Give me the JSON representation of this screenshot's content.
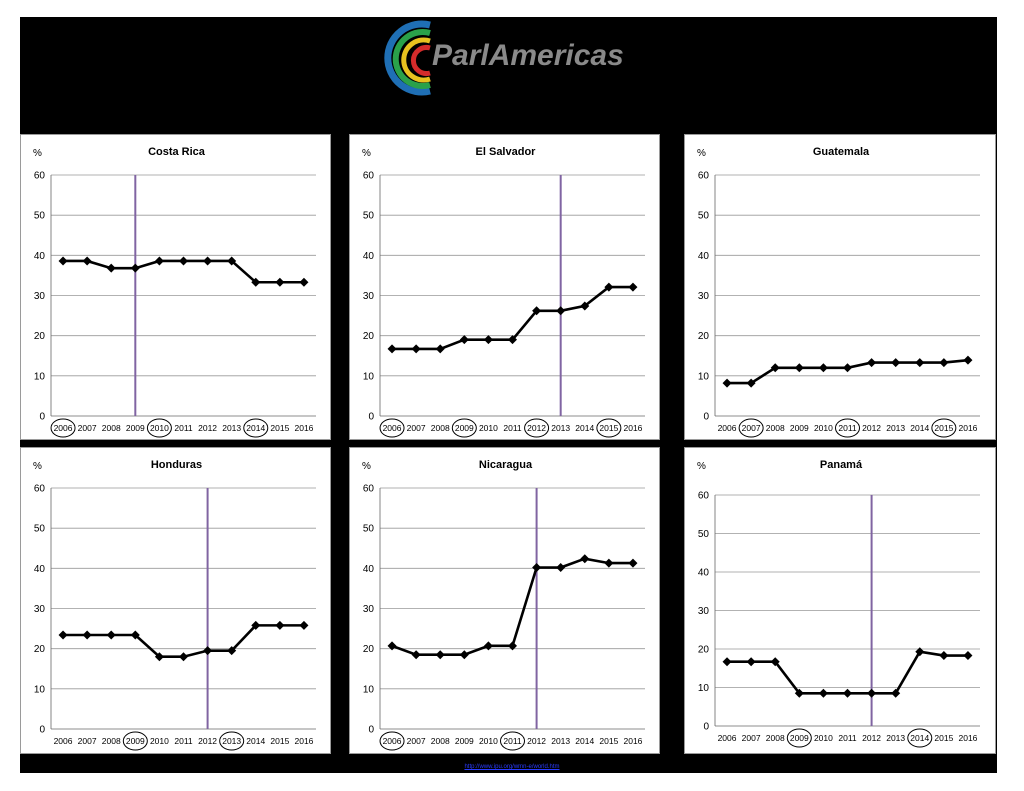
{
  "header": {
    "logo_text": "ParlAmericas"
  },
  "footer": {
    "link_text": "http://www.ipu.org/wmn-e/world.htm"
  },
  "colors": {
    "line": "#000000",
    "marker_line": "#8064a2",
    "grid": "#999999",
    "background": "#000000"
  },
  "chart_data": [
    {
      "type": "line",
      "title": "Costa Rica",
      "ylabel": "%",
      "ylim": [
        0,
        60
      ],
      "yticks": [
        0,
        10,
        20,
        30,
        40,
        50,
        60
      ],
      "categories": [
        "2006",
        "2007",
        "2008",
        "2009",
        "2010",
        "2011",
        "2012",
        "2013",
        "2014",
        "2015",
        "2016"
      ],
      "values": [
        38.6,
        38.6,
        36.8,
        36.8,
        38.6,
        38.6,
        38.6,
        38.6,
        33.3,
        33.3,
        33.3
      ],
      "highlight_years": [
        "2006",
        "2010",
        "2014"
      ],
      "vertical_marker": "2009"
    },
    {
      "type": "line",
      "title": "El Salvador",
      "ylabel": "%",
      "ylim": [
        0,
        60
      ],
      "yticks": [
        0,
        10,
        20,
        30,
        40,
        50,
        60
      ],
      "categories": [
        "2006",
        "2007",
        "2008",
        "2009",
        "2010",
        "2011",
        "2012",
        "2013",
        "2014",
        "2015",
        "2016"
      ],
      "values": [
        16.7,
        16.7,
        16.7,
        19.0,
        19.0,
        19.0,
        26.2,
        26.2,
        27.4,
        32.1,
        32.1
      ],
      "highlight_years": [
        "2006",
        "2009",
        "2012",
        "2015"
      ],
      "vertical_marker": "2013"
    },
    {
      "type": "line",
      "title": "Guatemala",
      "ylabel": "%",
      "ylim": [
        0,
        60
      ],
      "yticks": [
        0,
        10,
        20,
        30,
        40,
        50,
        60
      ],
      "categories": [
        "2006",
        "2007",
        "2008",
        "2009",
        "2010",
        "2011",
        "2012",
        "2013",
        "2014",
        "2015",
        "2016"
      ],
      "values": [
        8.2,
        8.2,
        12.0,
        12.0,
        12.0,
        12.0,
        13.3,
        13.3,
        13.3,
        13.3,
        13.9
      ],
      "highlight_years": [
        "2007",
        "2011",
        "2015"
      ],
      "vertical_marker": null
    },
    {
      "type": "line",
      "title": "Honduras",
      "ylabel": "%",
      "ylim": [
        0,
        60
      ],
      "yticks": [
        0,
        10,
        20,
        30,
        40,
        50,
        60
      ],
      "categories": [
        "2006",
        "2007",
        "2008",
        "2009",
        "2010",
        "2011",
        "2012",
        "2013",
        "2014",
        "2015",
        "2016"
      ],
      "values": [
        23.4,
        23.4,
        23.4,
        23.4,
        18.0,
        18.0,
        19.5,
        19.5,
        25.8,
        25.8,
        25.8
      ],
      "highlight_years": [
        "2009",
        "2013"
      ],
      "vertical_marker": "2012"
    },
    {
      "type": "line",
      "title": "Nicaragua",
      "ylabel": "%",
      "ylim": [
        0,
        60
      ],
      "yticks": [
        0,
        10,
        20,
        30,
        40,
        50,
        60
      ],
      "categories": [
        "2006",
        "2007",
        "2008",
        "2009",
        "2010",
        "2011",
        "2012",
        "2013",
        "2014",
        "2015",
        "2016"
      ],
      "values": [
        20.7,
        18.5,
        18.5,
        18.5,
        20.7,
        20.7,
        40.2,
        40.2,
        42.4,
        41.3,
        41.3
      ],
      "highlight_years": [
        "2006",
        "2011"
      ],
      "vertical_marker": "2012"
    },
    {
      "type": "line",
      "title": "Panamá",
      "ylabel": "%",
      "ylim": [
        0,
        60
      ],
      "yticks": [
        0,
        10,
        20,
        30,
        40,
        50,
        60
      ],
      "categories": [
        "2006",
        "2007",
        "2008",
        "2009",
        "2010",
        "2011",
        "2012",
        "2013",
        "2014",
        "2015",
        "2016"
      ],
      "values": [
        16.7,
        16.7,
        16.7,
        8.5,
        8.5,
        8.5,
        8.5,
        8.5,
        19.3,
        18.3,
        18.3
      ],
      "highlight_years": [
        "2009",
        "2014"
      ],
      "vertical_marker": "2012"
    }
  ]
}
